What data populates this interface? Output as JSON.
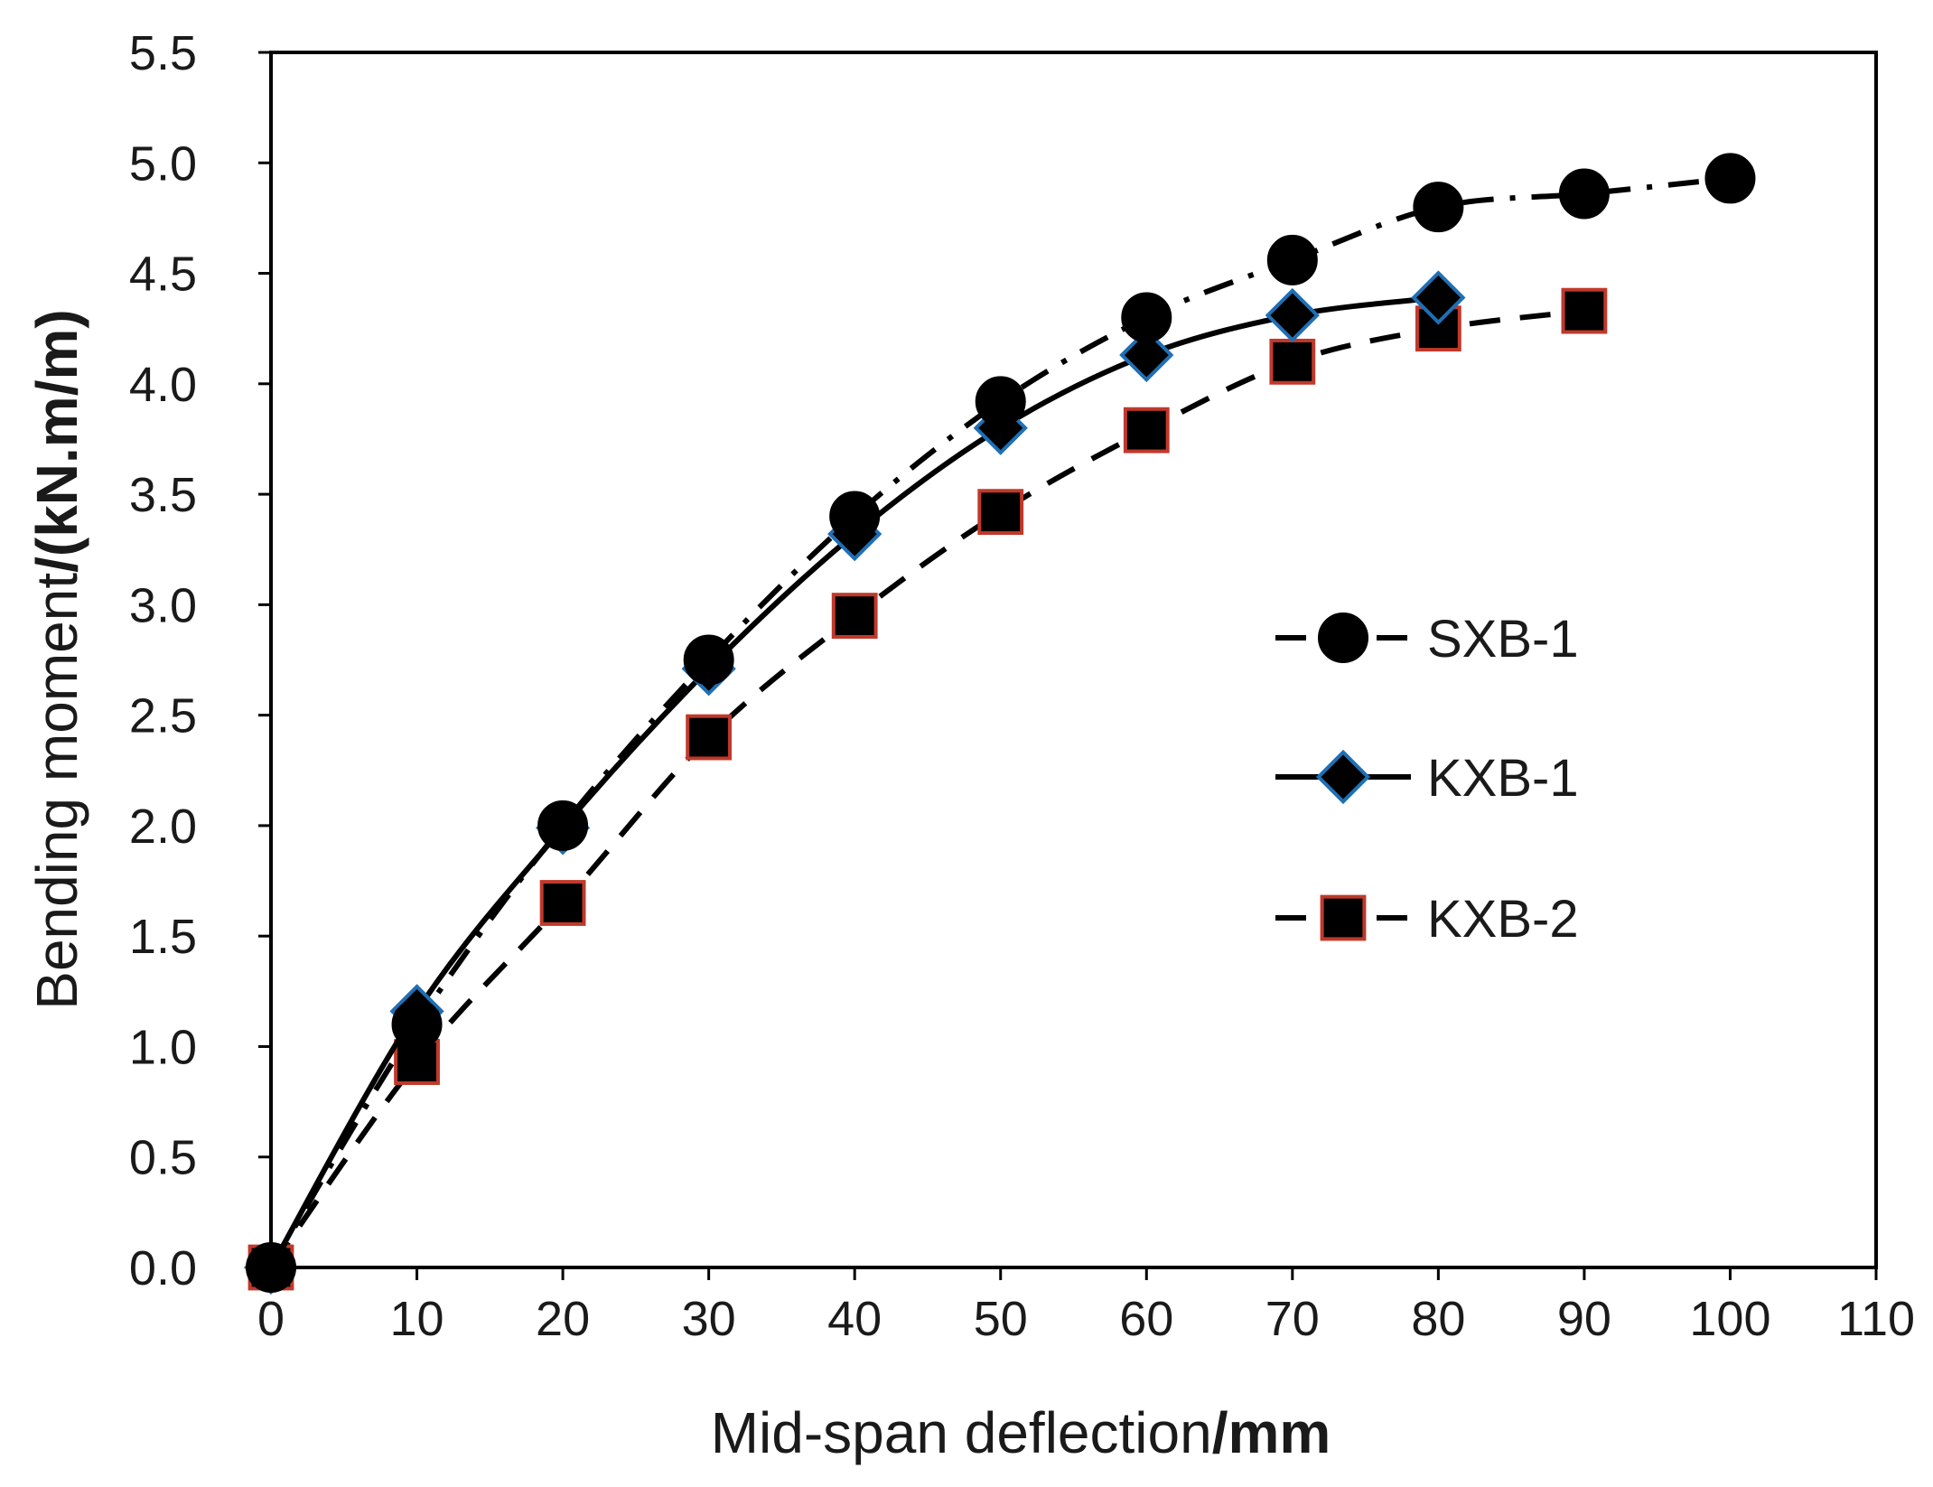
{
  "chart_data": {
    "type": "line",
    "title": "",
    "xlabel": {
      "regular": "Mid-span deflection",
      "bold": "/mm"
    },
    "ylabel": {
      "regular": "Bending moment",
      "bold": "/(kN.m/m)"
    },
    "xlim": [
      0,
      110
    ],
    "ylim": [
      0.0,
      5.5
    ],
    "xticks": [
      "0",
      "10",
      "20",
      "30",
      "40",
      "50",
      "60",
      "70",
      "80",
      "90",
      "100",
      "110"
    ],
    "yticks": [
      "0.0",
      "0.5",
      "1.0",
      "1.5",
      "2.0",
      "2.5",
      "3.0",
      "3.5",
      "4.0",
      "4.5",
      "5.0",
      "5.5"
    ],
    "grid": false,
    "legend_position": "right-middle",
    "series": [
      {
        "name": "SXB-1",
        "line_style": "dash-dot",
        "marker": "circle",
        "marker_fill": "#000000",
        "marker_stroke": "#000000",
        "x": [
          0,
          10,
          20,
          30,
          40,
          50,
          60,
          70,
          80,
          90,
          100
        ],
        "y": [
          0.0,
          1.1,
          2.0,
          2.75,
          3.4,
          3.92,
          4.3,
          4.56,
          4.8,
          4.86,
          4.93
        ]
      },
      {
        "name": "KXB-1",
        "line_style": "solid",
        "marker": "diamond",
        "marker_fill": "#000000",
        "marker_stroke": "#1f6fb4",
        "x": [
          0,
          10,
          20,
          30,
          40,
          50,
          60,
          70,
          80
        ],
        "y": [
          0.0,
          1.16,
          1.99,
          2.71,
          3.32,
          3.8,
          4.13,
          4.31,
          4.39
        ]
      },
      {
        "name": "KXB-2",
        "line_style": "dashed",
        "marker": "square",
        "marker_fill": "#000000",
        "marker_stroke": "#c0392b",
        "x": [
          0,
          10,
          20,
          30,
          40,
          50,
          60,
          70,
          80,
          90
        ],
        "y": [
          0.0,
          0.93,
          1.65,
          2.4,
          2.95,
          3.42,
          3.79,
          4.1,
          4.25,
          4.33
        ]
      }
    ]
  }
}
